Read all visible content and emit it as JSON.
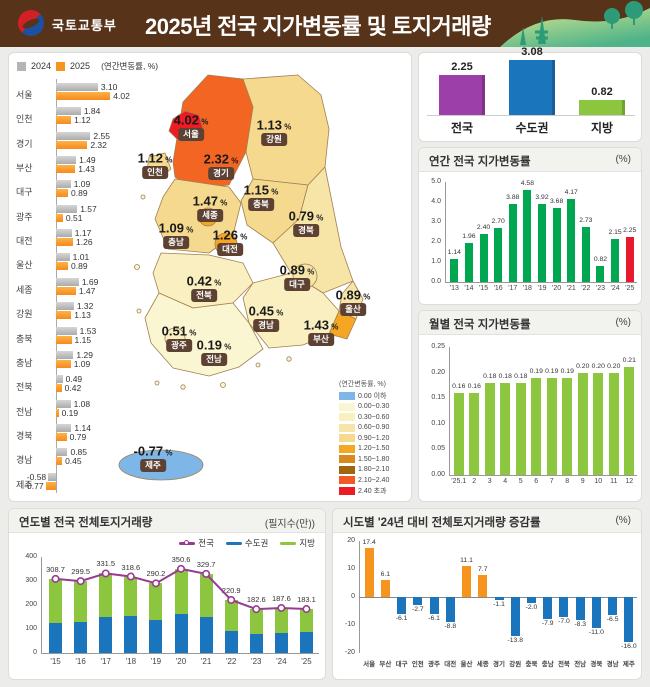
{
  "header": {
    "agency": "국토교통부",
    "title": "2025년 전국 지가변동률 및 토지거래량"
  },
  "map": {
    "unit": "(연간변동률, %)",
    "regions": [
      {
        "key": "seoul",
        "name": "서울",
        "value": "4.02",
        "color": "#ED1C24"
      },
      {
        "key": "incheon",
        "name": "인천",
        "value": "1.12",
        "color": "#F5D98E"
      },
      {
        "key": "gyeonggi",
        "name": "경기",
        "value": "2.32",
        "color": "#F26522"
      },
      {
        "key": "gangwon",
        "name": "강원",
        "value": "1.13",
        "color": "#F5D98E"
      },
      {
        "key": "chungbuk",
        "name": "충북",
        "value": "1.15",
        "color": "#F5D98E"
      },
      {
        "key": "sejong",
        "name": "세종",
        "value": "1.47",
        "color": "#F5A623"
      },
      {
        "key": "chungnam",
        "name": "충남",
        "value": "1.09",
        "color": "#F5D98E"
      },
      {
        "key": "daejeon",
        "name": "대전",
        "value": "1.26",
        "color": "#F5A623"
      },
      {
        "key": "gyeongbuk",
        "name": "경북",
        "value": "0.79",
        "color": "#F7E5A8"
      },
      {
        "key": "daegu",
        "name": "대구",
        "value": "0.89",
        "color": "#F7E5A8"
      },
      {
        "key": "ulsan",
        "name": "울산",
        "value": "0.89",
        "color": "#F7E5A8"
      },
      {
        "key": "busan",
        "name": "부산",
        "value": "1.43",
        "color": "#F5A623"
      },
      {
        "key": "jeonbuk",
        "name": "전북",
        "value": "0.42",
        "color": "#F9EFC0"
      },
      {
        "key": "gyeongnam",
        "name": "경남",
        "value": "0.45",
        "color": "#F9EFC0"
      },
      {
        "key": "gwangju",
        "name": "광주",
        "value": "0.51",
        "color": "#F9EFC0"
      },
      {
        "key": "jeonnam",
        "name": "전남",
        "value": "0.19",
        "color": "#FBF6D2"
      },
      {
        "key": "jeju",
        "name": "제주",
        "value": "-0.77",
        "color": "#7EB6E8"
      }
    ],
    "legend": [
      {
        "range": "0.00 이하",
        "color": "#7EB6E8"
      },
      {
        "range": "0.00~0.30",
        "color": "#FBF6D2"
      },
      {
        "range": "0.30~0.60",
        "color": "#F9EFC0"
      },
      {
        "range": "0.60~0.90",
        "color": "#F7E5A8"
      },
      {
        "range": "0.90~1.20",
        "color": "#F5D98E"
      },
      {
        "range": "1.20~1.50",
        "color": "#F5A623"
      },
      {
        "range": "1.50~1.80",
        "color": "#D98A1E"
      },
      {
        "range": "1.80~2.10",
        "color": "#A0660F"
      },
      {
        "range": "2.10~2.40",
        "color": "#F05A28"
      },
      {
        "range": "2.40 초과",
        "color": "#ED1C24"
      }
    ]
  },
  "chart_data": [
    {
      "id": "region_compare",
      "type": "bar",
      "orientation": "horizontal",
      "unit": "(연간변동률, %)",
      "categories": [
        "서울",
        "인천",
        "경기",
        "부산",
        "대구",
        "광주",
        "대전",
        "울산",
        "세종",
        "강원",
        "충북",
        "충남",
        "전북",
        "전남",
        "경북",
        "경남",
        "제주"
      ],
      "series": [
        {
          "name": "2024",
          "color": "#B5B5B5",
          "values": [
            3.1,
            1.84,
            2.55,
            1.49,
            1.09,
            1.57,
            1.17,
            1.01,
            1.69,
            1.32,
            1.53,
            1.29,
            0.49,
            1.08,
            1.14,
            0.85,
            -0.58
          ]
        },
        {
          "name": "2025",
          "color": "#F7941D",
          "values": [
            4.02,
            1.12,
            2.32,
            1.43,
            0.89,
            0.51,
            1.26,
            0.89,
            1.47,
            1.13,
            1.15,
            1.09,
            0.42,
            0.19,
            0.79,
            0.45,
            -0.77
          ]
        }
      ]
    },
    {
      "id": "summary",
      "type": "bar",
      "categories": [
        "전국",
        "수도권",
        "지방"
      ],
      "values": [
        2.25,
        3.08,
        0.82
      ],
      "colors": [
        "#9C3FA8",
        "#1B75BC",
        "#8CC63F"
      ]
    },
    {
      "id": "annual",
      "type": "bar",
      "title": "연간 전국 지가변동률",
      "unit": "(%)",
      "categories": [
        "'13",
        "'14",
        "'15",
        "'16",
        "'17",
        "'18",
        "'19",
        "'20",
        "'21",
        "'22",
        "'23",
        "'24",
        "'25"
      ],
      "values": [
        1.14,
        1.96,
        2.4,
        2.7,
        3.88,
        4.58,
        3.92,
        3.68,
        4.17,
        2.73,
        0.82,
        2.15,
        2.25
      ],
      "ylim": [
        0,
        5
      ],
      "yticks": [
        "0.0",
        "1.0",
        "2.0",
        "3.0",
        "4.0",
        "5.0"
      ],
      "bar_color": "#00A650",
      "last_bar_color": "#E8192C"
    },
    {
      "id": "monthly",
      "type": "bar",
      "title": "월별 전국 지가변동률",
      "unit": "(%)",
      "categories": [
        "'25.1",
        "2",
        "3",
        "4",
        "5",
        "6",
        "7",
        "8",
        "9",
        "10",
        "11",
        "12"
      ],
      "values": [
        0.16,
        0.16,
        0.18,
        0.18,
        0.18,
        0.19,
        0.19,
        0.19,
        0.2,
        0.2,
        0.2,
        0.21
      ],
      "ylim": [
        0,
        0.25
      ],
      "yticks": [
        "0.00",
        "0.05",
        "0.10",
        "0.15",
        "0.20",
        "0.25"
      ],
      "bar_color": "#8DC63F"
    },
    {
      "id": "yearly_volume",
      "type": "bar+line",
      "title": "연도별 전국 전체토지거래량",
      "unit": "(필지수(만))",
      "categories": [
        "'15",
        "'16",
        "'17",
        "'18",
        "'19",
        "'20",
        "'21",
        "'22",
        "'23",
        "'24",
        "'25"
      ],
      "series": [
        {
          "name": "전국",
          "role": "line",
          "color": "#993B93",
          "values": [
            308.7,
            299.5,
            331.5,
            318.6,
            290.2,
            350.6,
            329.7,
            220.9,
            182.6,
            187.6,
            183.1
          ]
        },
        {
          "name": "수도권",
          "role": "bar",
          "color": "#1B75BC",
          "values": [
            125,
            130,
            150,
            153,
            137,
            161,
            148,
            91,
            78,
            83,
            86
          ]
        },
        {
          "name": "지방",
          "role": "bar",
          "color": "#8CC63F",
          "values": [
            183.7,
            169.5,
            181.5,
            165.6,
            153.2,
            189.6,
            181.7,
            129.9,
            104.6,
            104.6,
            97.1
          ]
        }
      ],
      "ylim": [
        0,
        400
      ],
      "yticks": [
        "0",
        "100",
        "200",
        "300",
        "400"
      ]
    },
    {
      "id": "regional_change",
      "type": "bar",
      "title": "시도별 '24년 대비 전체토지거래량 증감률",
      "unit": "(%)",
      "categories": [
        "서울",
        "부산",
        "대구",
        "인천",
        "광주",
        "대전",
        "울산",
        "세종",
        "경기",
        "강원",
        "충북",
        "충남",
        "전북",
        "전남",
        "경북",
        "경남",
        "제주"
      ],
      "values": [
        17.4,
        6.1,
        -6.1,
        -2.7,
        -6.1,
        -8.8,
        11.1,
        7.7,
        -1.1,
        -13.8,
        -2.0,
        -7.9,
        -7.0,
        -8.3,
        -11.0,
        -6.5,
        -16.0
      ],
      "ylim": [
        -20,
        20
      ],
      "yticks": [
        "20",
        "10",
        "0",
        "-10",
        "-20"
      ],
      "pos_color": "#F7941D",
      "neg_color": "#1B75BC"
    }
  ]
}
